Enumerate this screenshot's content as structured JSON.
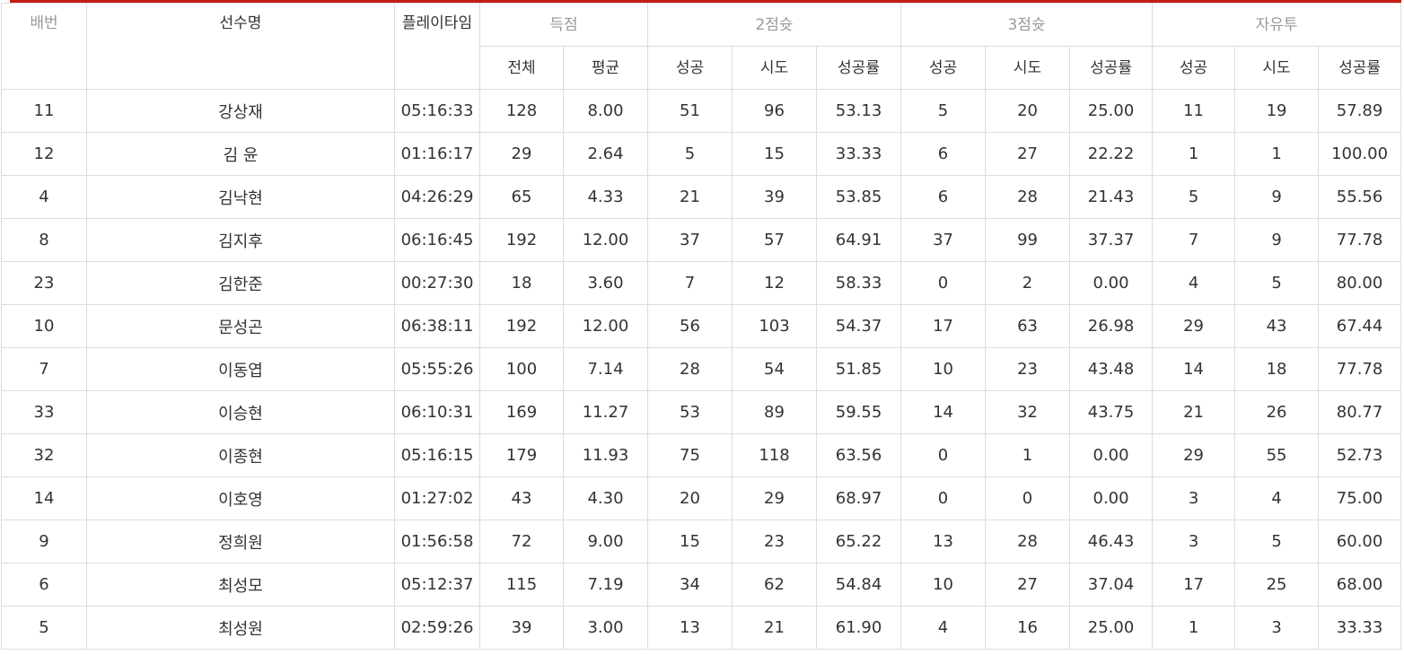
{
  "headers": {
    "number": "배번",
    "name": "선수명",
    "playtime": "플레이타임",
    "score": "득점",
    "two_pt": "2점슛",
    "three_pt": "3점슛",
    "free_throw": "자유투",
    "score_sub": [
      "전체",
      "평균"
    ],
    "shot_sub": [
      "성공",
      "시도",
      "성공률"
    ]
  },
  "rows": [
    {
      "no": "11",
      "name": "강상재",
      "time": "05:16:33",
      "total": "128",
      "avg": "8.00",
      "p2m": "51",
      "p2a": "96",
      "p2r": "53.13",
      "p3m": "5",
      "p3a": "20",
      "p3r": "25.00",
      "ftm": "11",
      "fta": "19",
      "ftr": "57.89"
    },
    {
      "no": "12",
      "name": "김 윤",
      "time": "01:16:17",
      "total": "29",
      "avg": "2.64",
      "p2m": "5",
      "p2a": "15",
      "p2r": "33.33",
      "p3m": "6",
      "p3a": "27",
      "p3r": "22.22",
      "ftm": "1",
      "fta": "1",
      "ftr": "100.00"
    },
    {
      "no": "4",
      "name": "김낙현",
      "time": "04:26:29",
      "total": "65",
      "avg": "4.33",
      "p2m": "21",
      "p2a": "39",
      "p2r": "53.85",
      "p3m": "6",
      "p3a": "28",
      "p3r": "21.43",
      "ftm": "5",
      "fta": "9",
      "ftr": "55.56"
    },
    {
      "no": "8",
      "name": "김지후",
      "time": "06:16:45",
      "total": "192",
      "avg": "12.00",
      "p2m": "37",
      "p2a": "57",
      "p2r": "64.91",
      "p3m": "37",
      "p3a": "99",
      "p3r": "37.37",
      "ftm": "7",
      "fta": "9",
      "ftr": "77.78"
    },
    {
      "no": "23",
      "name": "김한준",
      "time": "00:27:30",
      "total": "18",
      "avg": "3.60",
      "p2m": "7",
      "p2a": "12",
      "p2r": "58.33",
      "p3m": "0",
      "p3a": "2",
      "p3r": "0.00",
      "ftm": "4",
      "fta": "5",
      "ftr": "80.00"
    },
    {
      "no": "10",
      "name": "문성곤",
      "time": "06:38:11",
      "total": "192",
      "avg": "12.00",
      "p2m": "56",
      "p2a": "103",
      "p2r": "54.37",
      "p3m": "17",
      "p3a": "63",
      "p3r": "26.98",
      "ftm": "29",
      "fta": "43",
      "ftr": "67.44"
    },
    {
      "no": "7",
      "name": "이동엽",
      "time": "05:55:26",
      "total": "100",
      "avg": "7.14",
      "p2m": "28",
      "p2a": "54",
      "p2r": "51.85",
      "p3m": "10",
      "p3a": "23",
      "p3r": "43.48",
      "ftm": "14",
      "fta": "18",
      "ftr": "77.78"
    },
    {
      "no": "33",
      "name": "이승현",
      "time": "06:10:31",
      "total": "169",
      "avg": "11.27",
      "p2m": "53",
      "p2a": "89",
      "p2r": "59.55",
      "p3m": "14",
      "p3a": "32",
      "p3r": "43.75",
      "ftm": "21",
      "fta": "26",
      "ftr": "80.77"
    },
    {
      "no": "32",
      "name": "이종현",
      "time": "05:16:15",
      "total": "179",
      "avg": "11.93",
      "p2m": "75",
      "p2a": "118",
      "p2r": "63.56",
      "p3m": "0",
      "p3a": "1",
      "p3r": "0.00",
      "ftm": "29",
      "fta": "55",
      "ftr": "52.73"
    },
    {
      "no": "14",
      "name": "이호영",
      "time": "01:27:02",
      "total": "43",
      "avg": "4.30",
      "p2m": "20",
      "p2a": "29",
      "p2r": "68.97",
      "p3m": "0",
      "p3a": "0",
      "p3r": "0.00",
      "ftm": "3",
      "fta": "4",
      "ftr": "75.00"
    },
    {
      "no": "9",
      "name": "정희원",
      "time": "01:56:58",
      "total": "72",
      "avg": "9.00",
      "p2m": "15",
      "p2a": "23",
      "p2r": "65.22",
      "p3m": "13",
      "p3a": "28",
      "p3r": "46.43",
      "ftm": "3",
      "fta": "5",
      "ftr": "60.00"
    },
    {
      "no": "6",
      "name": "최성모",
      "time": "05:12:37",
      "total": "115",
      "avg": "7.19",
      "p2m": "34",
      "p2a": "62",
      "p2r": "54.84",
      "p3m": "10",
      "p3a": "27",
      "p3r": "37.04",
      "ftm": "17",
      "fta": "25",
      "ftr": "68.00"
    },
    {
      "no": "5",
      "name": "최성원",
      "time": "02:59:26",
      "total": "39",
      "avg": "3.00",
      "p2m": "13",
      "p2a": "21",
      "p2r": "61.90",
      "p3m": "4",
      "p3a": "16",
      "p3r": "25.00",
      "ftm": "1",
      "fta": "3",
      "ftr": "33.33"
    }
  ]
}
